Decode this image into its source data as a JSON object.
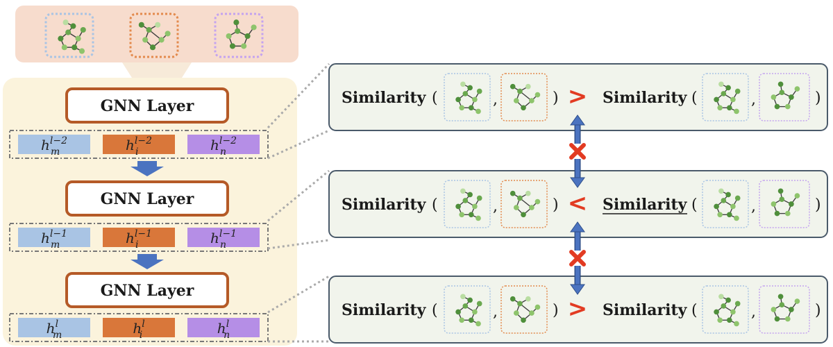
{
  "colors": {
    "input_bg": "#f7dccd",
    "stack_bg": "#fbf3dc",
    "layer_border": "#b55a27",
    "emb_m": "#a9c4e4",
    "emb_i": "#d9773a",
    "emb_n": "#b58ee6",
    "panel_bg": "#f1f4ec",
    "panel_border": "#4a5a6a",
    "arrow": "#4b73c0",
    "gt": "#e23b22",
    "cross": "#e23b22",
    "node_dark": "#4f8f3b",
    "node_light": "#8ec46c"
  },
  "icons": {
    "layer_arrow": "blue-down-arrow-icon",
    "compare": "double-arrow-icon",
    "cross": "cross-icon",
    "graph": "molecule-graph-icon"
  },
  "inputs": [
    {
      "frame": "dotted-blue"
    },
    {
      "frame": "dotted-orange"
    },
    {
      "frame": "dotted-purple"
    }
  ],
  "layers": [
    {
      "label": "GNN Layer",
      "embeddings": [
        {
          "base": "h",
          "sub": "m",
          "sup": "l−2"
        },
        {
          "base": "h",
          "sub": "i",
          "sup": "l−2"
        },
        {
          "base": "h",
          "sub": "n",
          "sup": "l−2"
        }
      ]
    },
    {
      "label": "GNN Layer",
      "embeddings": [
        {
          "base": "h",
          "sub": "m",
          "sup": "l−1"
        },
        {
          "base": "h",
          "sub": "i",
          "sup": "l−1"
        },
        {
          "base": "h",
          "sub": "n",
          "sup": "l−1"
        }
      ]
    },
    {
      "label": "GNN Layer",
      "embeddings": [
        {
          "base": "h",
          "sub": "m",
          "sup": "l"
        },
        {
          "base": "h",
          "sub": "i",
          "sup": "l"
        },
        {
          "base": "h",
          "sub": "n",
          "sup": "l"
        }
      ]
    }
  ],
  "comparisons": [
    {
      "left_word": "Similarity",
      "right_word": "Similarity",
      "operator": ">",
      "open": "(",
      "comma": ",",
      "close": ")",
      "underlined": false
    },
    {
      "left_word": "Similarity",
      "right_word": "Similarity",
      "operator": "<",
      "open": "(",
      "comma": ",",
      "close": ")",
      "underlined": true
    },
    {
      "left_word": "Similarity",
      "right_word": "Similarity",
      "operator": ">",
      "open": "(",
      "comma": ",",
      "close": ")",
      "underlined": false
    }
  ]
}
